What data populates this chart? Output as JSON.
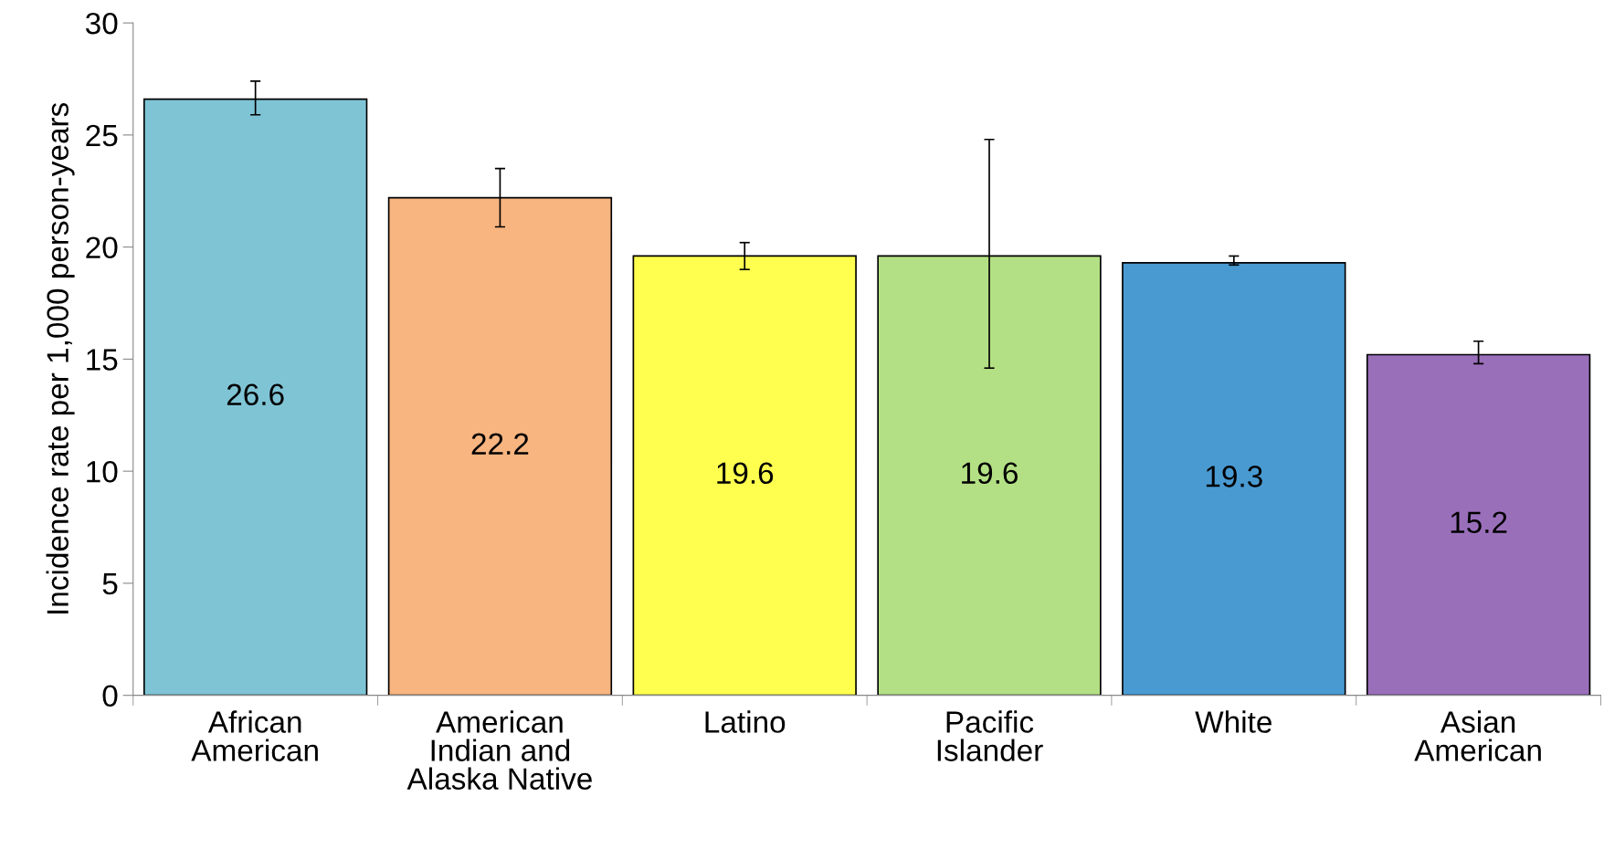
{
  "chart_data": {
    "type": "bar",
    "ylabel": "Incidence rate per 1,000 person-years",
    "categories": [
      "African\nAmerican",
      "American\nIndian and\nAlaska Native",
      "Latino",
      "Pacific\nIslander",
      "White",
      "Asian\nAmerican"
    ],
    "values": [
      26.6,
      22.2,
      19.6,
      19.6,
      19.3,
      15.2
    ],
    "colors": [
      "#7fc4d5",
      "#f8b580",
      "#ffff4f",
      "#b3e084",
      "#4a9ad2",
      "#9a6fba"
    ],
    "errors": [
      [
        25.9,
        27.4
      ],
      [
        20.9,
        23.5
      ],
      [
        19.0,
        20.2
      ],
      [
        14.6,
        24.8
      ],
      [
        19.2,
        19.6
      ],
      [
        14.8,
        15.8
      ]
    ],
    "ylim": [
      0,
      30
    ],
    "yticks": [
      0,
      5,
      10,
      15,
      20,
      25,
      30
    ],
    "data_labels": true,
    "grid": false
  }
}
